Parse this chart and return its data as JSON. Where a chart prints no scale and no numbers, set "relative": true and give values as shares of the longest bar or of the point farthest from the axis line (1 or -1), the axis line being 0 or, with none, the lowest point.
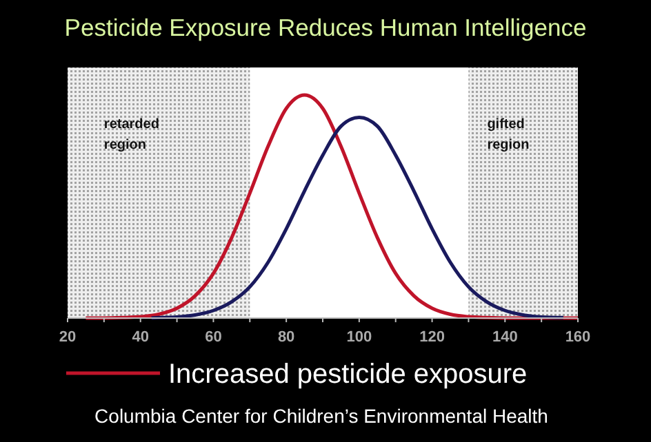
{
  "chart_data": {
    "type": "line",
    "title": "Pesticide Exposure Reduces Human  Intelligence",
    "relative": true,
    "x": [
      25,
      30,
      35,
      40,
      45,
      50,
      55,
      60,
      65,
      70,
      75,
      80,
      85,
      90,
      95,
      100,
      105,
      110,
      115,
      120,
      125,
      130,
      135,
      140,
      150,
      160
    ],
    "xlim": [
      20,
      160
    ],
    "xticks": [
      20,
      {
        "value": 30,
        "label": null
      },
      40,
      {
        "value": 50,
        "label": null
      },
      60,
      {
        "value": 70,
        "label": null
      },
      80,
      {
        "value": 90,
        "label": null
      },
      100,
      {
        "value": 110,
        "label": null
      },
      120,
      {
        "value": 130,
        "label": null
      },
      140,
      {
        "value": 150,
        "label": null
      },
      160
    ],
    "series": [
      {
        "name": "Increased pesticide exposure",
        "color": "#c0142a",
        "values": [
          0,
          0,
          0.002,
          0.006,
          0.017,
          0.044,
          0.1,
          0.2,
          0.36,
          0.56,
          0.77,
          0.94,
          1,
          0.94,
          0.77,
          0.56,
          0.36,
          0.2,
          0.1,
          0.044,
          0.017,
          0.006,
          0.002,
          0,
          0,
          0
        ]
      },
      {
        "color": "#1a1a5e",
        "x": [
          43,
          45,
          50,
          55,
          60,
          65,
          70,
          75,
          80,
          85,
          90,
          95,
          100,
          105,
          110,
          115,
          120,
          125,
          130,
          135,
          140,
          145,
          150,
          156
        ],
        "values": [
          0,
          0.002,
          0.005,
          0.014,
          0.034,
          0.073,
          0.14,
          0.25,
          0.4,
          0.57,
          0.73,
          0.86,
          0.9,
          0.86,
          0.73,
          0.57,
          0.4,
          0.25,
          0.14,
          0.073,
          0.034,
          0.014,
          0.005,
          0.002
        ]
      }
    ],
    "bands": [
      {
        "axis": "x",
        "from": 20,
        "to": 70,
        "label": "retarded region",
        "color": "#bdbdbd"
      },
      {
        "axis": "x",
        "from": 130,
        "to": 160,
        "label": "gifted region",
        "color": "#bdbdbd"
      }
    ],
    "legend": "bottom",
    "annotations": [
      "Columbia Center for Children’s Environmental Health"
    ]
  }
}
